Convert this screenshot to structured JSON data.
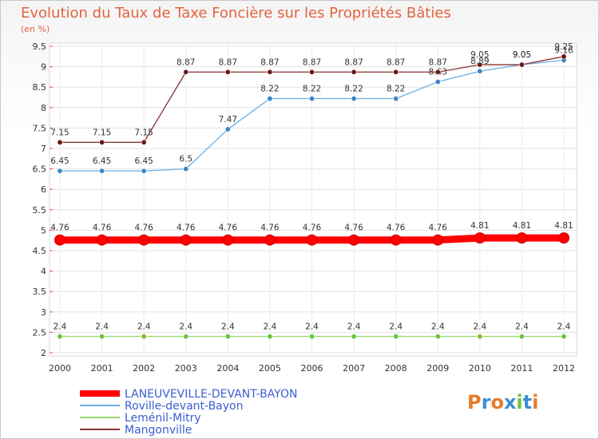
{
  "chart_data": {
    "type": "line",
    "title": "Evolution du Taux de Taxe Foncière sur les Propriétés Bâties",
    "subtitle": "(en %)",
    "categories": [
      "2000",
      "2001",
      "2002",
      "2003",
      "2004",
      "2005",
      "2006",
      "2007",
      "2008",
      "2009",
      "2010",
      "2011",
      "2012"
    ],
    "ylim": [
      2,
      9.5
    ],
    "yticks": [
      2,
      2.5,
      3,
      3.5,
      4,
      4.5,
      5,
      5.5,
      6,
      6.5,
      7,
      7.5,
      8,
      8.5,
      9,
      9.5
    ],
    "ytick_labels": [
      "2",
      "2.5",
      "3",
      "3.5",
      "4",
      "4.5",
      "5",
      "5.5",
      "6",
      "6.5",
      "7",
      "7.5",
      "8",
      "8.5",
      "9",
      "9.5"
    ],
    "grid": true,
    "legend_position": "bottom-left",
    "series": [
      {
        "name": "LANEUVEVILLE-DEVANT-BAYON",
        "color": "#ff0000",
        "weight": "thick",
        "values": [
          4.76,
          4.76,
          4.76,
          4.76,
          4.76,
          4.76,
          4.76,
          4.76,
          4.76,
          4.76,
          4.81,
          4.81,
          4.81
        ],
        "labels": [
          "4.76",
          "4.76",
          "4.76",
          "4.76",
          "4.76",
          "4.76",
          "4.76",
          "4.76",
          "4.76",
          "4.76",
          "4.81",
          "4.81",
          "4.81"
        ]
      },
      {
        "name": "Roville-devant-Bayon",
        "color": "#6aaee0",
        "marker": "#3a86c8",
        "weight": "thin",
        "values": [
          6.45,
          6.45,
          6.45,
          6.5,
          7.47,
          8.22,
          8.22,
          8.22,
          8.22,
          8.63,
          8.89,
          9.05,
          9.16
        ],
        "labels": [
          "6.45",
          "6.45",
          "6.45",
          "6.5",
          "7.47",
          "8.22",
          "8.22",
          "8.22",
          "8.22",
          "8.63",
          "8.89",
          "9.05",
          "9.16"
        ]
      },
      {
        "name": "Leménil-Mitry",
        "color": "#9ad46a",
        "marker": "#6cc43a",
        "weight": "thin",
        "values": [
          2.4,
          2.4,
          2.4,
          2.4,
          2.4,
          2.4,
          2.4,
          2.4,
          2.4,
          2.4,
          2.4,
          2.4,
          2.4
        ],
        "labels": [
          "2.4",
          "2.4",
          "2.4",
          "2.4",
          "2.4",
          "2.4",
          "2.4",
          "2.4",
          "2.4",
          "2.4",
          "2.4",
          "2.4",
          "2.4"
        ]
      },
      {
        "name": "Mangonville",
        "color": "#8a3030",
        "marker": "#6a1818",
        "weight": "thin",
        "values": [
          7.15,
          7.15,
          7.15,
          8.87,
          8.87,
          8.87,
          8.87,
          8.87,
          8.87,
          8.87,
          9.05,
          9.05,
          9.25
        ],
        "labels": [
          "7.15",
          "7.15",
          "7.15",
          "8.87",
          "8.87",
          "8.87",
          "8.87",
          "8.87",
          "8.87",
          "8.87",
          "9.05",
          "9.05",
          "9.25"
        ]
      }
    ]
  },
  "logo": {
    "text": "Proxiti",
    "letter_colors": [
      "#e8792a",
      "#3f8fd6",
      "#e8792a",
      "#3f8fd6",
      "#6cc43a",
      "#3f8fd6",
      "#e8792a"
    ]
  }
}
